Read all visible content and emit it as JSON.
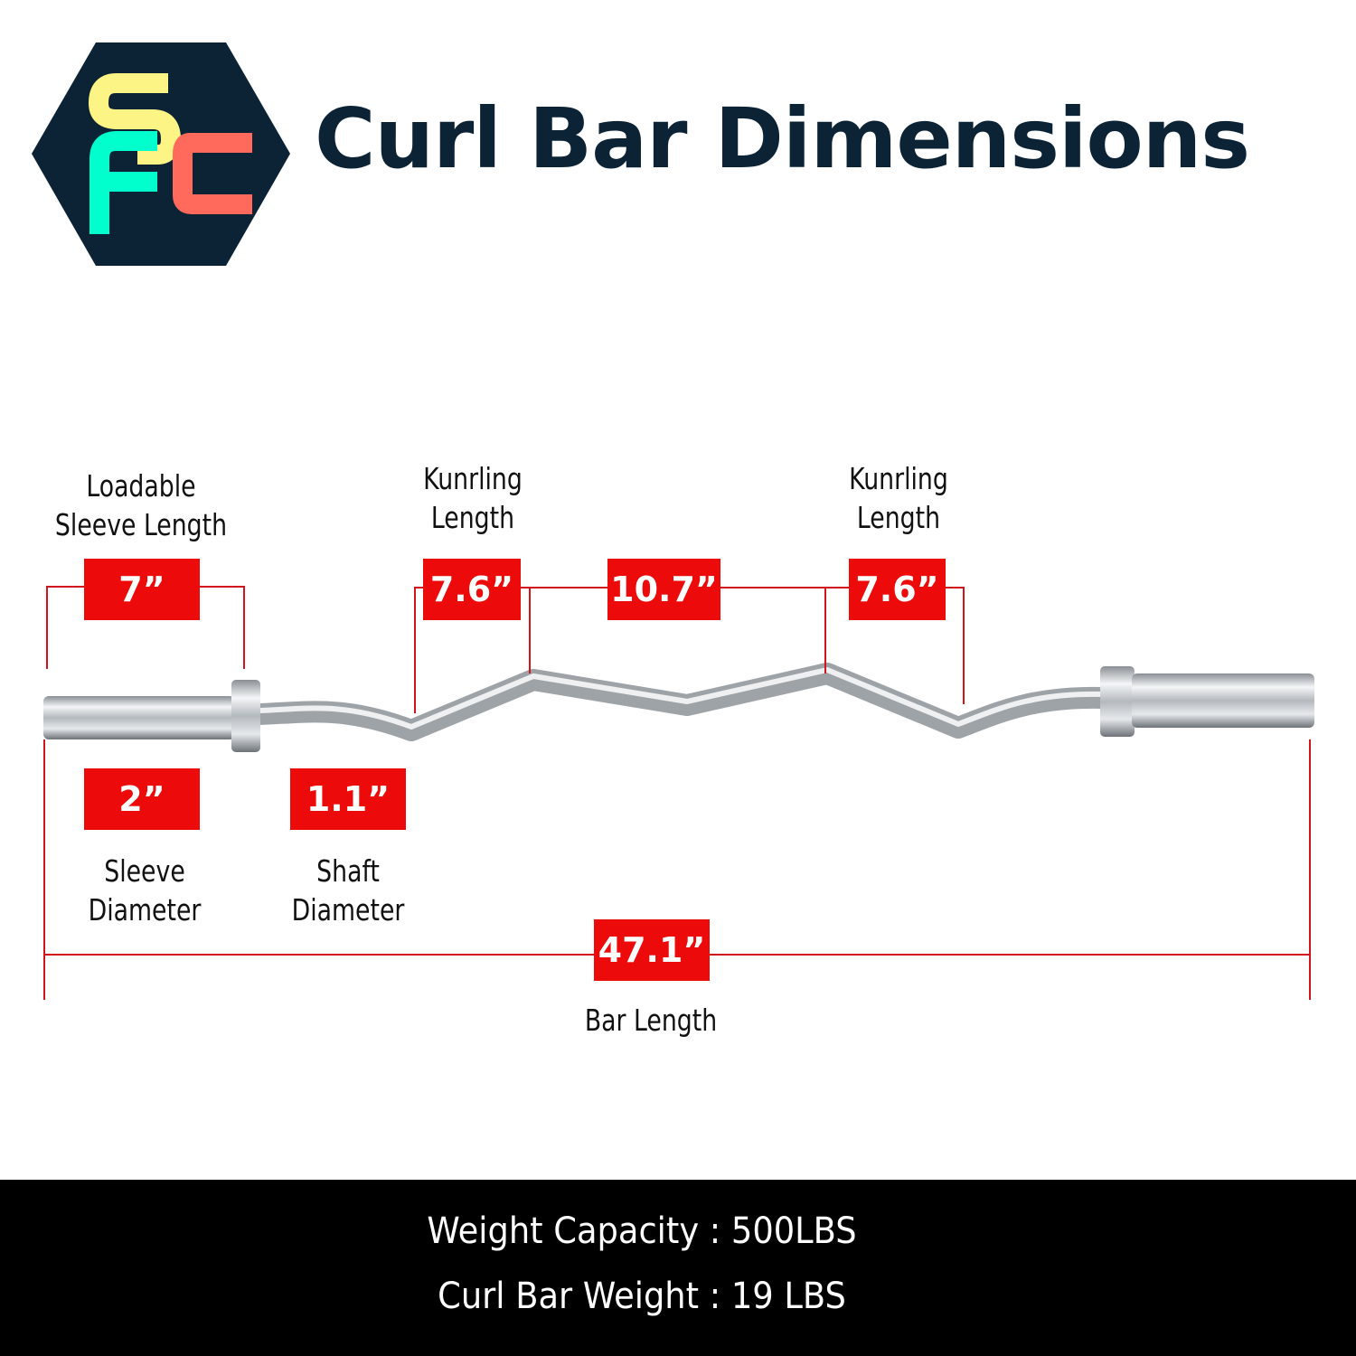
{
  "logo": {
    "letters": "SFC",
    "colors": {
      "hex": "#0c2336",
      "s": "#fdf486",
      "f": "#00ffcc",
      "c": "#ff6a5c"
    }
  },
  "title": "Curl Bar Dimensions",
  "labels": {
    "loadable_sleeve": [
      "Loadable",
      "Sleeve Length"
    ],
    "knurling_left": [
      "Kunrling",
      "Length"
    ],
    "knurling_right": [
      "Kunrling",
      "Length"
    ],
    "sleeve_diameter": [
      "Sleeve",
      "Diameter"
    ],
    "shaft_diameter": [
      "Shaft",
      "Diameter"
    ],
    "bar_length": "Bar Length"
  },
  "measurements": {
    "sleeve_length": "7”",
    "knurling_left": "7.6”",
    "center": "10.7”",
    "knurling_right": "7.6”",
    "sleeve_diameter": "2”",
    "shaft_diameter": "1.1”",
    "bar_length": "47.1”"
  },
  "footer": {
    "capacity": "Weight Capacity : 500LBS",
    "weight": "Curl Bar Weight : 19 LBS"
  },
  "colors": {
    "accent": "#ec0a0a",
    "title": "#0c2336"
  }
}
